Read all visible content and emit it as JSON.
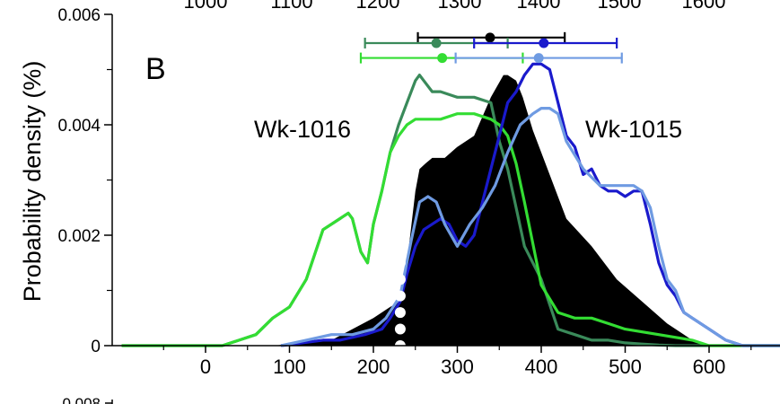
{
  "chart_data": {
    "type": "area",
    "panel_label": "B",
    "ylabel": "Probability density (%)",
    "xlim": [
      -100,
      690
    ],
    "ylim": [
      0,
      0.006
    ],
    "x_ticks": [
      0,
      100,
      200,
      300,
      400,
      500,
      600
    ],
    "x_tick_labels": [
      "0",
      "100",
      "200",
      "300",
      "400",
      "500",
      "600"
    ],
    "y_ticks": [
      0,
      0.002,
      0.004,
      0.006
    ],
    "y_tick_labels": [
      "0",
      "0.002",
      "0.004",
      "0.006"
    ],
    "top_axis_tick_labels": [
      "1000",
      "1100",
      "1200",
      "1300",
      "1400",
      "1500",
      "1600"
    ],
    "next_panel_partial_tick_label": "0.008",
    "annotations": [
      {
        "text": "Wk-1016",
        "x": 180,
        "y": 0.0039
      },
      {
        "text": "Wk-1015",
        "x": 470,
        "y": 0.0039
      }
    ],
    "colors": {
      "black": "#000000",
      "dark_green": "#3a8a5a",
      "bright_green": "#33dd33",
      "dark_blue": "#1a1acc",
      "light_blue": "#6f9be2",
      "boundary_dots": "#ffffff"
    },
    "series": [
      {
        "color_key": "black",
        "style": "filled",
        "x": [
          -100,
          80,
          120,
          150,
          175,
          200,
          220,
          232,
          240,
          250,
          255,
          262,
          270,
          285,
          300,
          320,
          340,
          355,
          360,
          370,
          378,
          390,
          400,
          430,
          460,
          490,
          520,
          550,
          580,
          600,
          690
        ],
        "y": [
          0,
          0,
          5e-05,
          0.0001,
          0.0003,
          0.0005,
          0.0007,
          0.0008,
          0.0015,
          0.0028,
          0.0032,
          0.0033,
          0.0034,
          0.0034,
          0.0036,
          0.0038,
          0.0045,
          0.0049,
          0.0049,
          0.0048,
          0.0045,
          0.0039,
          0.0035,
          0.0023,
          0.0018,
          0.0012,
          0.0008,
          0.0004,
          0.0001,
          0,
          0
        ]
      },
      {
        "color_key": "dark_green",
        "style": "line",
        "x": [
          -100,
          20,
          40,
          60,
          80,
          100,
          120,
          140,
          160,
          170,
          175,
          185,
          193,
          200,
          210,
          220,
          230,
          240,
          250,
          255,
          260,
          270,
          280,
          300,
          320,
          340,
          350,
          360,
          370,
          380,
          400,
          420,
          440,
          460,
          480,
          500,
          520,
          540,
          560,
          690
        ],
        "y": [
          0,
          0,
          0.0001,
          0.0002,
          0.0005,
          0.0007,
          0.0012,
          0.0021,
          0.0023,
          0.0024,
          0.0023,
          0.0017,
          0.0015,
          0.0022,
          0.0028,
          0.0035,
          0.004,
          0.0044,
          0.0048,
          0.0049,
          0.0048,
          0.0046,
          0.0046,
          0.0045,
          0.0045,
          0.0044,
          0.0037,
          0.0032,
          0.0025,
          0.0018,
          0.0012,
          0.0003,
          0.0002,
          0.0001,
          0.0001,
          5e-05,
          3e-05,
          1e-05,
          0,
          0
        ]
      },
      {
        "color_key": "bright_green",
        "style": "line",
        "x": [
          -100,
          20,
          40,
          60,
          80,
          100,
          120,
          140,
          160,
          170,
          175,
          185,
          193,
          200,
          210,
          220,
          230,
          240,
          250,
          255,
          260,
          280,
          300,
          320,
          340,
          350,
          360,
          370,
          380,
          400,
          420,
          440,
          460,
          480,
          500,
          540,
          580,
          600,
          690
        ],
        "y": [
          0,
          0,
          0.0001,
          0.0002,
          0.0005,
          0.0007,
          0.0012,
          0.0021,
          0.0023,
          0.0024,
          0.0023,
          0.0017,
          0.0015,
          0.0022,
          0.0028,
          0.0035,
          0.0038,
          0.004,
          0.0041,
          0.0041,
          0.0041,
          0.0041,
          0.0042,
          0.0042,
          0.0041,
          0.004,
          0.0038,
          0.0033,
          0.0026,
          0.0011,
          0.0006,
          0.0005,
          0.0005,
          0.0004,
          0.0003,
          0.0002,
          0.0001,
          0,
          0
        ]
      },
      {
        "color_key": "dark_blue",
        "style": "line",
        "x": [
          90,
          140,
          160,
          190,
          210,
          220,
          232,
          240,
          250,
          260,
          270,
          280,
          290,
          300,
          310,
          320,
          330,
          340,
          350,
          360,
          370,
          380,
          390,
          400,
          410,
          420,
          430,
          440,
          450,
          460,
          470,
          480,
          490,
          500,
          510,
          520,
          530,
          540,
          550,
          560,
          570,
          580,
          600,
          620,
          640,
          690
        ],
        "y": [
          0,
          0.0001,
          0.0001,
          0.0002,
          0.0003,
          0.0005,
          0.0008,
          0.0013,
          0.0018,
          0.0021,
          0.0022,
          0.0023,
          0.0022,
          0.0019,
          0.0018,
          0.002,
          0.0026,
          0.0032,
          0.0038,
          0.0044,
          0.0046,
          0.0049,
          0.0051,
          0.0051,
          0.005,
          0.0044,
          0.0038,
          0.0036,
          0.0031,
          0.0032,
          0.0029,
          0.0028,
          0.0028,
          0.0027,
          0.0028,
          0.0028,
          0.0022,
          0.0015,
          0.0011,
          0.0009,
          0.0006,
          0.0005,
          0.0003,
          0.0001,
          0,
          0
        ]
      },
      {
        "color_key": "light_blue",
        "style": "line",
        "x": [
          90,
          120,
          150,
          175,
          200,
          215,
          232,
          245,
          255,
          265,
          275,
          285,
          300,
          315,
          330,
          345,
          360,
          375,
          390,
          400,
          410,
          420,
          430,
          450,
          470,
          490,
          510,
          520,
          530,
          540,
          550,
          560,
          570,
          580,
          600,
          620,
          640,
          690
        ],
        "y": [
          0,
          0.0001,
          0.0002,
          0.0002,
          0.0003,
          0.0005,
          0.0009,
          0.0019,
          0.0026,
          0.0027,
          0.0026,
          0.0022,
          0.0018,
          0.0022,
          0.0025,
          0.0029,
          0.0035,
          0.004,
          0.0042,
          0.0043,
          0.0043,
          0.0042,
          0.0037,
          0.0032,
          0.0029,
          0.0029,
          0.0029,
          0.0028,
          0.0025,
          0.0018,
          0.0012,
          0.001,
          0.0006,
          0.0005,
          0.0003,
          0.0001,
          0,
          0
        ]
      }
    ],
    "intervals": [
      {
        "color_key": "black",
        "start": 253,
        "end": 428,
        "center": 339,
        "y": 0.00558
      },
      {
        "color_key": "dark_green",
        "start": 190,
        "end": 360,
        "center": 275,
        "y": 0.00548
      },
      {
        "color_key": "dark_blue",
        "start": 320,
        "end": 490,
        "center": 403,
        "y": 0.00548
      },
      {
        "color_key": "bright_green",
        "start": 185,
        "end": 378,
        "center": 282,
        "y": 0.00521
      },
      {
        "color_key": "light_blue",
        "start": 298,
        "end": 496,
        "center": 397,
        "y": 0.00521
      }
    ],
    "boundary_dots": {
      "x": 232,
      "y": [
        0,
        0.0003,
        0.0006,
        0.0009,
        0.0012,
        0.0015,
        0.0018
      ]
    }
  }
}
